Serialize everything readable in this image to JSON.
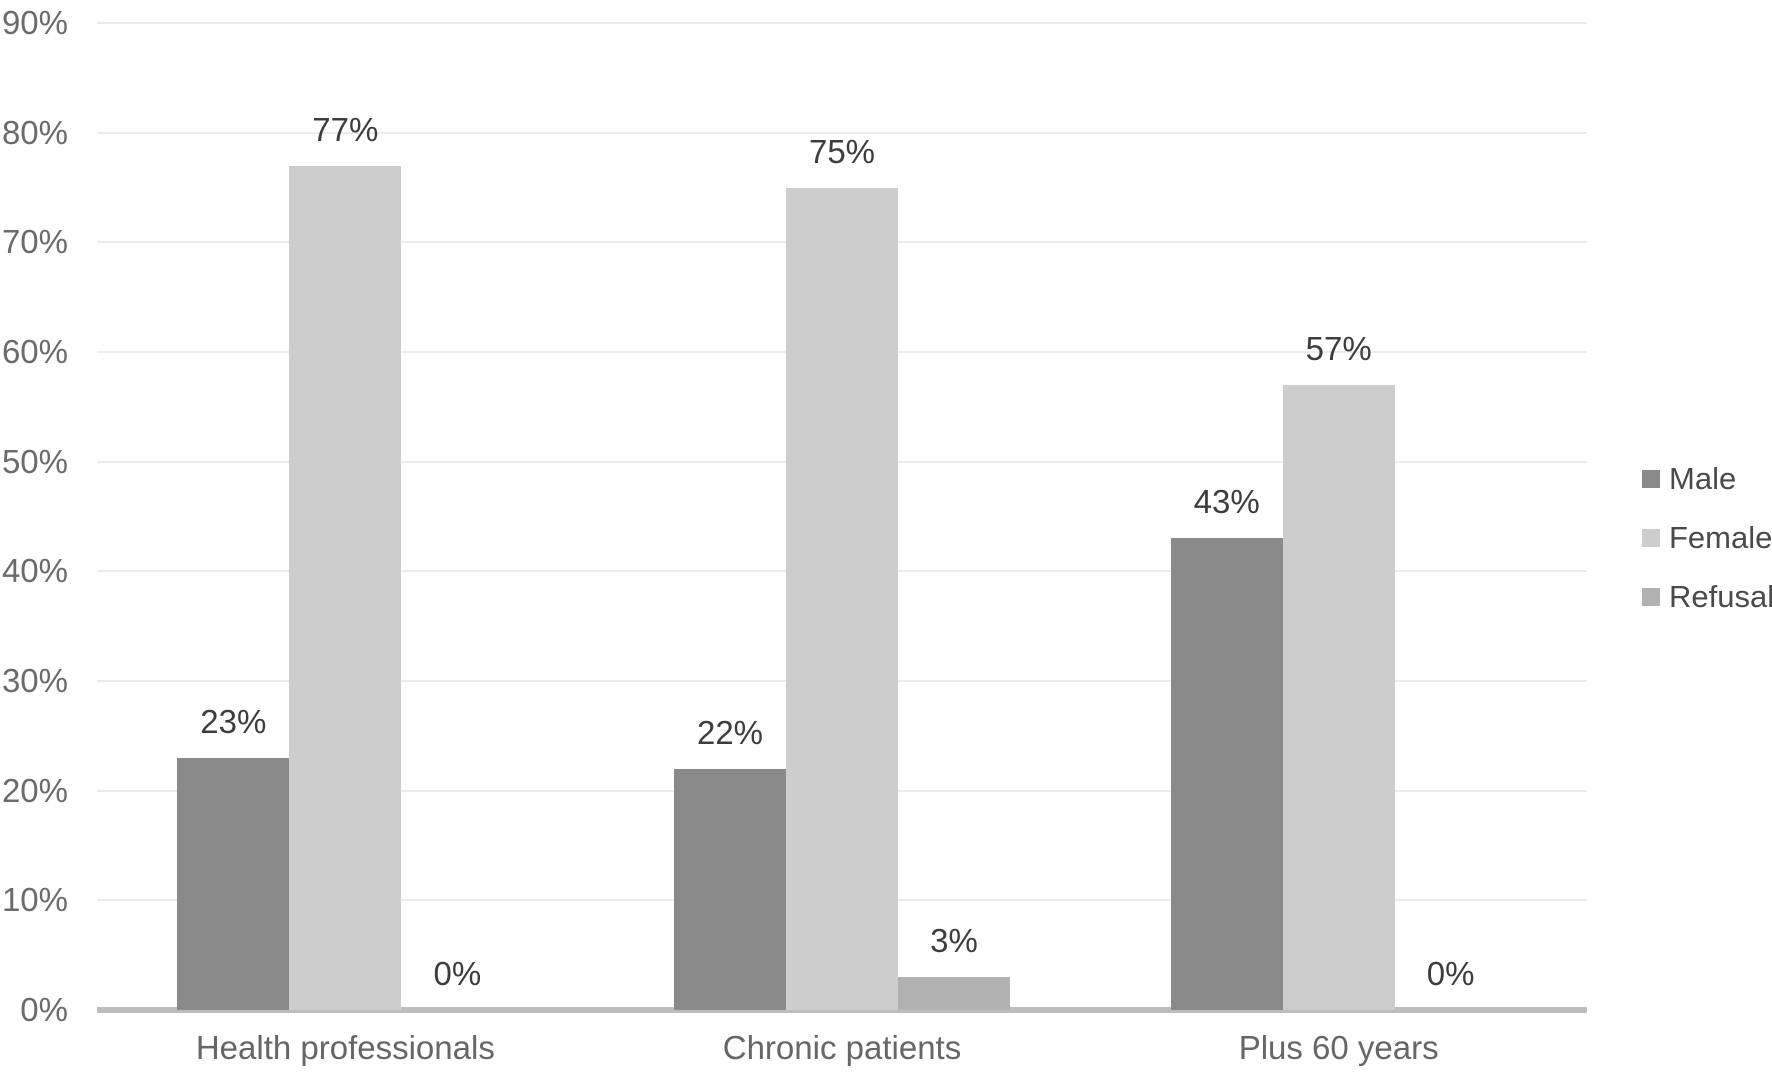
{
  "chart_data": {
    "type": "bar",
    "title": "",
    "categories": [
      "Health professionals",
      "Chronic patients",
      "Plus 60 years"
    ],
    "series": [
      {
        "name": "Male",
        "color": "#8a8a8a",
        "values": [
          23,
          22,
          43
        ],
        "labels": [
          "23%",
          "22%",
          "43%"
        ]
      },
      {
        "name": "Female",
        "color": "#cdcdcd",
        "values": [
          77,
          75,
          57
        ],
        "labels": [
          "77%",
          "75%",
          "57%"
        ]
      },
      {
        "name": "Refusal",
        "color": "#b1b1b1",
        "values": [
          0,
          3,
          0
        ],
        "labels": [
          "0%",
          "3%",
          "0%"
        ]
      }
    ],
    "y_ticks": [
      "90%",
      "80%",
      "70%",
      "60%",
      "50%",
      "40%",
      "30%",
      "20%",
      "10%",
      "0%"
    ],
    "ylim": [
      0,
      90
    ],
    "xlabel": "",
    "ylabel": "",
    "grid": true,
    "legend_position": "right",
    "colors": {
      "background": "#ffffff",
      "gridline": "#ececec",
      "axis_line": "#bdbdbd",
      "tick_text": "#6b6b6b",
      "category_text": "#666666",
      "data_label_text": "#3d3d3d",
      "legend_text": "#4a4a4a"
    }
  }
}
